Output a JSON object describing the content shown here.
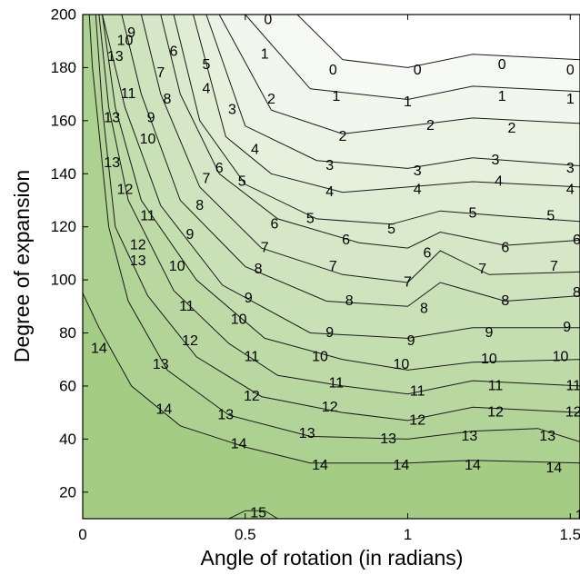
{
  "chart_data": {
    "type": "contour",
    "xlabel": "Angle of rotation (in radians)",
    "ylabel": "Degree of expansion",
    "xlim": [
      0,
      1.53
    ],
    "ylim": [
      10,
      200
    ],
    "x_ticks": [
      {
        "value": 0,
        "label": "0"
      },
      {
        "value": 0.5,
        "label": "0.5"
      },
      {
        "value": 1,
        "label": "1"
      },
      {
        "value": 1.5,
        "label": "1.5"
      }
    ],
    "y_ticks": [
      {
        "value": 20,
        "label": "20"
      },
      {
        "value": 40,
        "label": "40"
      },
      {
        "value": 60,
        "label": "60"
      },
      {
        "value": 80,
        "label": "80"
      },
      {
        "value": 100,
        "label": "100"
      },
      {
        "value": 120,
        "label": "120"
      },
      {
        "value": 140,
        "label": "140"
      },
      {
        "value": 160,
        "label": "160"
      },
      {
        "value": 180,
        "label": "180"
      },
      {
        "value": 200,
        "label": "200"
      }
    ],
    "colormap": {
      "low": "#ffffff",
      "high": "#a5cc85"
    },
    "levels": [
      {
        "level": 0,
        "points": [
          [
            0.66,
            200
          ],
          [
            0.8,
            183
          ],
          [
            1.0,
            180
          ],
          [
            1.2,
            185
          ],
          [
            1.53,
            183
          ]
        ],
        "labels": [
          {
            "text": "0",
            "x": 0.57,
            "y": 198
          },
          {
            "text": "0",
            "x": 0.77,
            "y": 179
          },
          {
            "text": "0",
            "x": 1.03,
            "y": 179
          },
          {
            "text": "0",
            "x": 1.29,
            "y": 181
          },
          {
            "text": "0",
            "x": 1.5,
            "y": 179
          }
        ]
      },
      {
        "level": 1,
        "points": [
          [
            0.5,
            200
          ],
          [
            0.7,
            172
          ],
          [
            1.0,
            168
          ],
          [
            1.2,
            173
          ],
          [
            1.53,
            171
          ]
        ],
        "labels": [
          {
            "text": "1",
            "x": 0.56,
            "y": 185
          },
          {
            "text": "1",
            "x": 0.78,
            "y": 169
          },
          {
            "text": "1",
            "x": 1.0,
            "y": 167
          },
          {
            "text": "1",
            "x": 1.29,
            "y": 169
          },
          {
            "text": "1",
            "x": 1.5,
            "y": 168
          }
        ]
      },
      {
        "level": 2,
        "points": [
          [
            0.42,
            200
          ],
          [
            0.58,
            164
          ],
          [
            0.8,
            155
          ],
          [
            1.0,
            158
          ],
          [
            1.2,
            161
          ],
          [
            1.53,
            159
          ]
        ],
        "labels": [
          {
            "text": "2",
            "x": 0.58,
            "y": 168
          },
          {
            "text": "2",
            "x": 0.8,
            "y": 154
          },
          {
            "text": "2",
            "x": 1.07,
            "y": 158
          },
          {
            "text": "2",
            "x": 1.32,
            "y": 157
          }
        ]
      },
      {
        "level": 3,
        "points": [
          [
            0.38,
            200
          ],
          [
            0.5,
            158
          ],
          [
            0.72,
            145
          ],
          [
            1.0,
            142
          ],
          [
            1.2,
            146
          ],
          [
            1.53,
            143
          ]
        ],
        "labels": [
          {
            "text": "3",
            "x": 0.46,
            "y": 164
          },
          {
            "text": "3",
            "x": 0.76,
            "y": 143
          },
          {
            "text": "3",
            "x": 1.03,
            "y": 141
          },
          {
            "text": "3",
            "x": 1.27,
            "y": 145
          },
          {
            "text": "3",
            "x": 1.5,
            "y": 142
          }
        ]
      },
      {
        "level": 4,
        "points": [
          [
            0.34,
            200
          ],
          [
            0.44,
            154
          ],
          [
            0.58,
            140
          ],
          [
            0.8,
            133
          ],
          [
            1.0,
            135
          ],
          [
            1.2,
            137
          ],
          [
            1.53,
            135
          ]
        ],
        "labels": [
          {
            "text": "4",
            "x": 0.38,
            "y": 172
          },
          {
            "text": "4",
            "x": 0.53,
            "y": 149
          },
          {
            "text": "4",
            "x": 0.76,
            "y": 133
          },
          {
            "text": "4",
            "x": 1.03,
            "y": 134
          },
          {
            "text": "4",
            "x": 1.28,
            "y": 137
          },
          {
            "text": "4",
            "x": 1.5,
            "y": 134
          }
        ]
      },
      {
        "level": 5,
        "points": [
          [
            0.28,
            200
          ],
          [
            0.36,
            160
          ],
          [
            0.5,
            136
          ],
          [
            0.72,
            123
          ],
          [
            0.95,
            121
          ],
          [
            1.1,
            126
          ],
          [
            1.3,
            124
          ],
          [
            1.53,
            122
          ]
        ],
        "labels": [
          {
            "text": "5",
            "x": 0.38,
            "y": 181
          },
          {
            "text": "5",
            "x": 0.49,
            "y": 137
          },
          {
            "text": "5",
            "x": 0.7,
            "y": 123
          },
          {
            "text": "5",
            "x": 0.95,
            "y": 119
          },
          {
            "text": "5",
            "x": 1.2,
            "y": 125
          },
          {
            "text": "5",
            "x": 1.44,
            "y": 124
          }
        ]
      },
      {
        "level": 6,
        "points": [
          [
            0.24,
            200
          ],
          [
            0.3,
            170
          ],
          [
            0.42,
            140
          ],
          [
            0.6,
            123
          ],
          [
            0.85,
            114
          ],
          [
            1.0,
            112
          ],
          [
            1.1,
            118
          ],
          [
            1.3,
            113
          ],
          [
            1.53,
            115
          ]
        ],
        "labels": [
          {
            "text": "6",
            "x": 0.28,
            "y": 186
          },
          {
            "text": "6",
            "x": 0.42,
            "y": 142
          },
          {
            "text": "6",
            "x": 0.59,
            "y": 121
          },
          {
            "text": "6",
            "x": 0.81,
            "y": 115
          },
          {
            "text": "6",
            "x": 1.06,
            "y": 110
          },
          {
            "text": "6",
            "x": 1.3,
            "y": 112
          },
          {
            "text": "6",
            "x": 1.52,
            "y": 115
          }
        ]
      },
      {
        "level": 7,
        "points": [
          [
            0.18,
            200
          ],
          [
            0.24,
            170
          ],
          [
            0.36,
            135
          ],
          [
            0.55,
            112
          ],
          [
            0.8,
            102
          ],
          [
            1.0,
            99
          ],
          [
            1.1,
            111
          ],
          [
            1.25,
            102
          ],
          [
            1.53,
            103
          ]
        ],
        "labels": [
          {
            "text": "7",
            "x": 0.24,
            "y": 178
          },
          {
            "text": "7",
            "x": 0.38,
            "y": 138
          },
          {
            "text": "7",
            "x": 0.56,
            "y": 112
          },
          {
            "text": "7",
            "x": 0.77,
            "y": 105
          },
          {
            "text": "7",
            "x": 1.0,
            "y": 99
          },
          {
            "text": "7",
            "x": 1.23,
            "y": 104
          },
          {
            "text": "7",
            "x": 1.45,
            "y": 105
          }
        ]
      },
      {
        "level": 8,
        "points": [
          [
            0.12,
            200
          ],
          [
            0.18,
            170
          ],
          [
            0.3,
            130
          ],
          [
            0.5,
            105
          ],
          [
            0.75,
            92
          ],
          [
            1.0,
            90
          ],
          [
            1.1,
            99
          ],
          [
            1.3,
            92
          ],
          [
            1.53,
            94
          ]
        ],
        "labels": [
          {
            "text": "8",
            "x": 0.26,
            "y": 168
          },
          {
            "text": "8",
            "x": 0.36,
            "y": 128
          },
          {
            "text": "8",
            "x": 0.54,
            "y": 104
          },
          {
            "text": "8",
            "x": 0.82,
            "y": 92
          },
          {
            "text": "8",
            "x": 1.05,
            "y": 89
          },
          {
            "text": "8",
            "x": 1.3,
            "y": 92
          },
          {
            "text": "8",
            "x": 1.52,
            "y": 95
          }
        ]
      },
      {
        "level": 9,
        "points": [
          [
            0.06,
            200
          ],
          [
            0.13,
            165
          ],
          [
            0.24,
            128
          ],
          [
            0.43,
            98
          ],
          [
            0.7,
            80
          ],
          [
            1.0,
            78
          ],
          [
            1.2,
            82
          ],
          [
            1.53,
            82
          ]
        ],
        "labels": [
          {
            "text": "9",
            "x": 0.15,
            "y": 193
          },
          {
            "text": "9",
            "x": 0.21,
            "y": 161
          },
          {
            "text": "9",
            "x": 0.33,
            "y": 117
          },
          {
            "text": "9",
            "x": 0.51,
            "y": 93
          },
          {
            "text": "9",
            "x": 0.76,
            "y": 80
          },
          {
            "text": "9",
            "x": 1.01,
            "y": 77
          },
          {
            "text": "9",
            "x": 1.25,
            "y": 80
          },
          {
            "text": "9",
            "x": 1.49,
            "y": 82
          }
        ]
      },
      {
        "level": 10,
        "points": [
          [
            0.06,
            200
          ],
          [
            0.1,
            165
          ],
          [
            0.18,
            130
          ],
          [
            0.35,
            100
          ],
          [
            0.56,
            78
          ],
          [
            0.8,
            70
          ],
          [
            1.0,
            66
          ],
          [
            1.2,
            69
          ],
          [
            1.53,
            70
          ]
        ],
        "labels": [
          {
            "text": "10",
            "x": 0.13,
            "y": 190
          },
          {
            "text": "10",
            "x": 0.2,
            "y": 153
          },
          {
            "text": "10",
            "x": 0.29,
            "y": 105
          },
          {
            "text": "10",
            "x": 0.48,
            "y": 85
          },
          {
            "text": "10",
            "x": 0.73,
            "y": 71
          },
          {
            "text": "10",
            "x": 0.98,
            "y": 68
          },
          {
            "text": "10",
            "x": 1.25,
            "y": 70
          },
          {
            "text": "10",
            "x": 1.47,
            "y": 71
          }
        ]
      },
      {
        "level": 11,
        "points": [
          [
            0.05,
            200
          ],
          [
            0.08,
            165
          ],
          [
            0.14,
            130
          ],
          [
            0.28,
            96
          ],
          [
            0.45,
            76
          ],
          [
            0.6,
            64
          ],
          [
            0.8,
            60
          ],
          [
            1.0,
            57
          ],
          [
            1.2,
            62
          ],
          [
            1.53,
            60
          ]
        ],
        "labels": [
          {
            "text": "11",
            "x": 0.14,
            "y": 170
          },
          {
            "text": "11",
            "x": 0.2,
            "y": 124
          },
          {
            "text": "11",
            "x": 0.32,
            "y": 90
          },
          {
            "text": "11",
            "x": 0.52,
            "y": 71
          },
          {
            "text": "11",
            "x": 0.78,
            "y": 61
          },
          {
            "text": "11",
            "x": 1.03,
            "y": 58
          },
          {
            "text": "11",
            "x": 1.27,
            "y": 60
          },
          {
            "text": "11",
            "x": 1.51,
            "y": 60
          }
        ]
      },
      {
        "level": 12,
        "points": [
          [
            0.04,
            200
          ],
          [
            0.06,
            165
          ],
          [
            0.1,
            120
          ],
          [
            0.2,
            94
          ],
          [
            0.35,
            71
          ],
          [
            0.55,
            56
          ],
          [
            0.8,
            50
          ],
          [
            1.0,
            47
          ],
          [
            1.2,
            52
          ],
          [
            1.53,
            50
          ]
        ],
        "labels": [
          {
            "text": "12",
            "x": 0.13,
            "y": 134
          },
          {
            "text": "12",
            "x": 0.17,
            "y": 113
          },
          {
            "text": "12",
            "x": 0.33,
            "y": 77
          },
          {
            "text": "12",
            "x": 0.52,
            "y": 56
          },
          {
            "text": "12",
            "x": 0.76,
            "y": 52
          },
          {
            "text": "12",
            "x": 1.03,
            "y": 47
          },
          {
            "text": "12",
            "x": 1.27,
            "y": 50
          },
          {
            "text": "12",
            "x": 1.51,
            "y": 50
          }
        ]
      },
      {
        "level": 13,
        "points": [
          [
            0.02,
            200
          ],
          [
            0.03,
            180
          ],
          [
            0.08,
            120
          ],
          [
            0.14,
            92
          ],
          [
            0.26,
            66
          ],
          [
            0.45,
            49
          ],
          [
            0.7,
            41
          ],
          [
            1.0,
            40
          ],
          [
            1.2,
            43
          ],
          [
            1.4,
            44
          ],
          [
            1.53,
            39
          ]
        ],
        "labels": [
          {
            "text": "13",
            "x": 0.1,
            "y": 184
          },
          {
            "text": "13",
            "x": 0.09,
            "y": 161
          },
          {
            "text": "13",
            "x": 0.09,
            "y": 144
          },
          {
            "text": "13",
            "x": 0.17,
            "y": 107
          },
          {
            "text": "13",
            "x": 0.24,
            "y": 68
          },
          {
            "text": "13",
            "x": 0.44,
            "y": 49
          },
          {
            "text": "13",
            "x": 0.69,
            "y": 42
          },
          {
            "text": "13",
            "x": 0.94,
            "y": 40
          },
          {
            "text": "13",
            "x": 1.19,
            "y": 41
          },
          {
            "text": "13",
            "x": 1.43,
            "y": 41
          }
        ]
      },
      {
        "level": 14,
        "points": [
          [
            0.0,
            95
          ],
          [
            0.05,
            82
          ],
          [
            0.15,
            60
          ],
          [
            0.3,
            45
          ],
          [
            0.5,
            37
          ],
          [
            0.7,
            31
          ],
          [
            1.0,
            31
          ],
          [
            1.2,
            32
          ],
          [
            1.53,
            31
          ]
        ],
        "labels": [
          {
            "text": "14",
            "x": 0.05,
            "y": 74
          },
          {
            "text": "14",
            "x": 0.25,
            "y": 51
          },
          {
            "text": "14",
            "x": 0.48,
            "y": 38
          },
          {
            "text": "14",
            "x": 0.73,
            "y": 30
          },
          {
            "text": "14",
            "x": 0.98,
            "y": 30
          },
          {
            "text": "14",
            "x": 1.2,
            "y": 30
          },
          {
            "text": "14",
            "x": 1.45,
            "y": 29
          }
        ]
      },
      {
        "level": 15,
        "points": [
          [
            0.45,
            10
          ],
          [
            0.5,
            13
          ],
          [
            0.56,
            13
          ],
          [
            0.6,
            10
          ]
        ],
        "labels": [
          {
            "text": "15",
            "x": 0.54,
            "y": 12
          },
          {
            "text": "15",
            "x": 1.54,
            "y": 11
          }
        ]
      }
    ]
  }
}
